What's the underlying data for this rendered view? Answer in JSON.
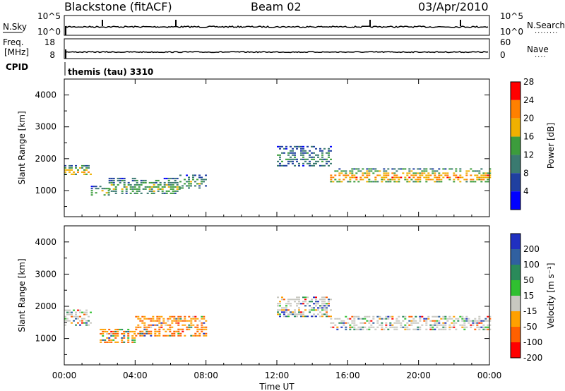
{
  "header": {
    "station": "Blackstone (fitACF)",
    "beam": "Beam 02",
    "date": "03/Apr/2010"
  },
  "panels": {
    "nsky": {
      "left_label": "N.Sky",
      "right_label": "N.Search",
      "left_ticks": [
        "10^5",
        "10^0"
      ],
      "right_ticks": [
        "10^5",
        "10^0"
      ]
    },
    "freq": {
      "left_label_1": "Freq.",
      "left_label_2": "[MHz]",
      "right_label": "Nave",
      "left_ticks": [
        "18",
        "8"
      ],
      "right_ticks": [
        "60",
        "0"
      ]
    },
    "cpid": {
      "label": "CPID",
      "value": "themis (tau) 3310"
    }
  },
  "chart_data": [
    {
      "type": "heatmap",
      "name": "power",
      "ylabel": "Slant Range [km]",
      "yticks": [
        1000,
        2000,
        3000,
        4000
      ],
      "xticks": [
        "00:00",
        "04:00",
        "08:00",
        "12:00",
        "16:00",
        "20:00",
        "00:00"
      ],
      "xlim_hours": [
        0,
        24
      ],
      "ylim_km": [
        180,
        4500
      ],
      "colorbar": {
        "label": "Power [dB]",
        "ticks": [
          "4",
          "8",
          "12",
          "16",
          "20",
          "24",
          "28"
        ],
        "colors": [
          "#0000ff",
          "#2040a0",
          "#3a7a70",
          "#3c9c3c",
          "#f0b000",
          "#ff8000",
          "#ff0000"
        ]
      },
      "echo_bands": [
        {
          "t": [
            0.0,
            1.5
          ],
          "r": [
            1500,
            1800
          ],
          "level": 0.75
        },
        {
          "t": [
            1.5,
            2.5
          ],
          "r": [
            850,
            1150
          ],
          "level": 0.6
        },
        {
          "t": [
            2.5,
            6.5
          ],
          "r": [
            900,
            1400
          ],
          "level": 0.55
        },
        {
          "t": [
            6.5,
            8.0
          ],
          "r": [
            1100,
            1500
          ],
          "level": 0.5
        },
        {
          "t": [
            12.0,
            15.0
          ],
          "r": [
            1800,
            2400
          ],
          "level": 0.4
        },
        {
          "t": [
            15.0,
            24.0
          ],
          "r": [
            1300,
            1700
          ],
          "level": 0.85
        }
      ]
    },
    {
      "type": "heatmap",
      "name": "velocity",
      "ylabel": "Slant Range [km]",
      "yticks": [
        1000,
        2000,
        3000,
        4000
      ],
      "xticks": [
        "00:00",
        "04:00",
        "08:00",
        "12:00",
        "16:00",
        "20:00",
        "00:00"
      ],
      "xlim_hours": [
        0,
        24
      ],
      "ylim_km": [
        180,
        4500
      ],
      "xlabel": "Time UT",
      "colorbar": {
        "label": "Velocity [m s⁻¹]",
        "ticks": [
          "200",
          "100",
          "50",
          "15",
          "-15",
          "-50",
          "-100",
          "-200"
        ],
        "colors": [
          "#2030c0",
          "#3060a0",
          "#2a8a5a",
          "#30c030",
          "#c8c8c0",
          "#ffa000",
          "#ff6000",
          "#ff0000"
        ]
      },
      "echo_bands": [
        {
          "t": [
            0.0,
            1.5
          ],
          "r": [
            1400,
            1900
          ],
          "level": 0.5
        },
        {
          "t": [
            2.0,
            4.0
          ],
          "r": [
            900,
            1300
          ],
          "level": 0.7
        },
        {
          "t": [
            4.0,
            8.0
          ],
          "r": [
            1100,
            1700
          ],
          "level": 0.85
        },
        {
          "t": [
            12.0,
            15.0
          ],
          "r": [
            1700,
            2300
          ],
          "level": 0.5
        },
        {
          "t": [
            15.0,
            24.0
          ],
          "r": [
            1300,
            1700
          ],
          "level": 0.5
        }
      ]
    }
  ]
}
